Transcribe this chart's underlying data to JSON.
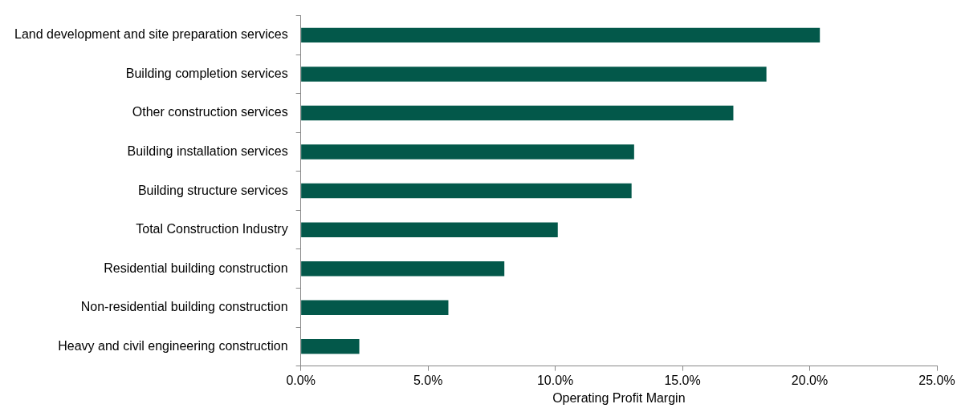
{
  "chart_data": {
    "type": "bar",
    "orientation": "horizontal",
    "xlabel": "Operating Profit Margin",
    "categories": [
      "Land development and site preparation services",
      "Building completion services",
      "Other construction services",
      "Building installation services",
      "Building structure services",
      "Total Construction Industry",
      "Residential building construction",
      "Non-residential building construction",
      "Heavy and civil engineering construction"
    ],
    "values": [
      20.4,
      18.3,
      17.0,
      13.1,
      13.0,
      10.1,
      8.0,
      5.8,
      2.3
    ],
    "color": "#03584a",
    "xlim": [
      0,
      25
    ],
    "xticks": [
      {
        "value": 0,
        "label": "0.0%"
      },
      {
        "value": 5,
        "label": "5.0%"
      },
      {
        "value": 10,
        "label": "10.0%"
      },
      {
        "value": 15,
        "label": "15.0%"
      },
      {
        "value": 20,
        "label": "20.0%"
      },
      {
        "value": 25,
        "label": "25.0%"
      }
    ],
    "grid": false,
    "legend": false
  }
}
